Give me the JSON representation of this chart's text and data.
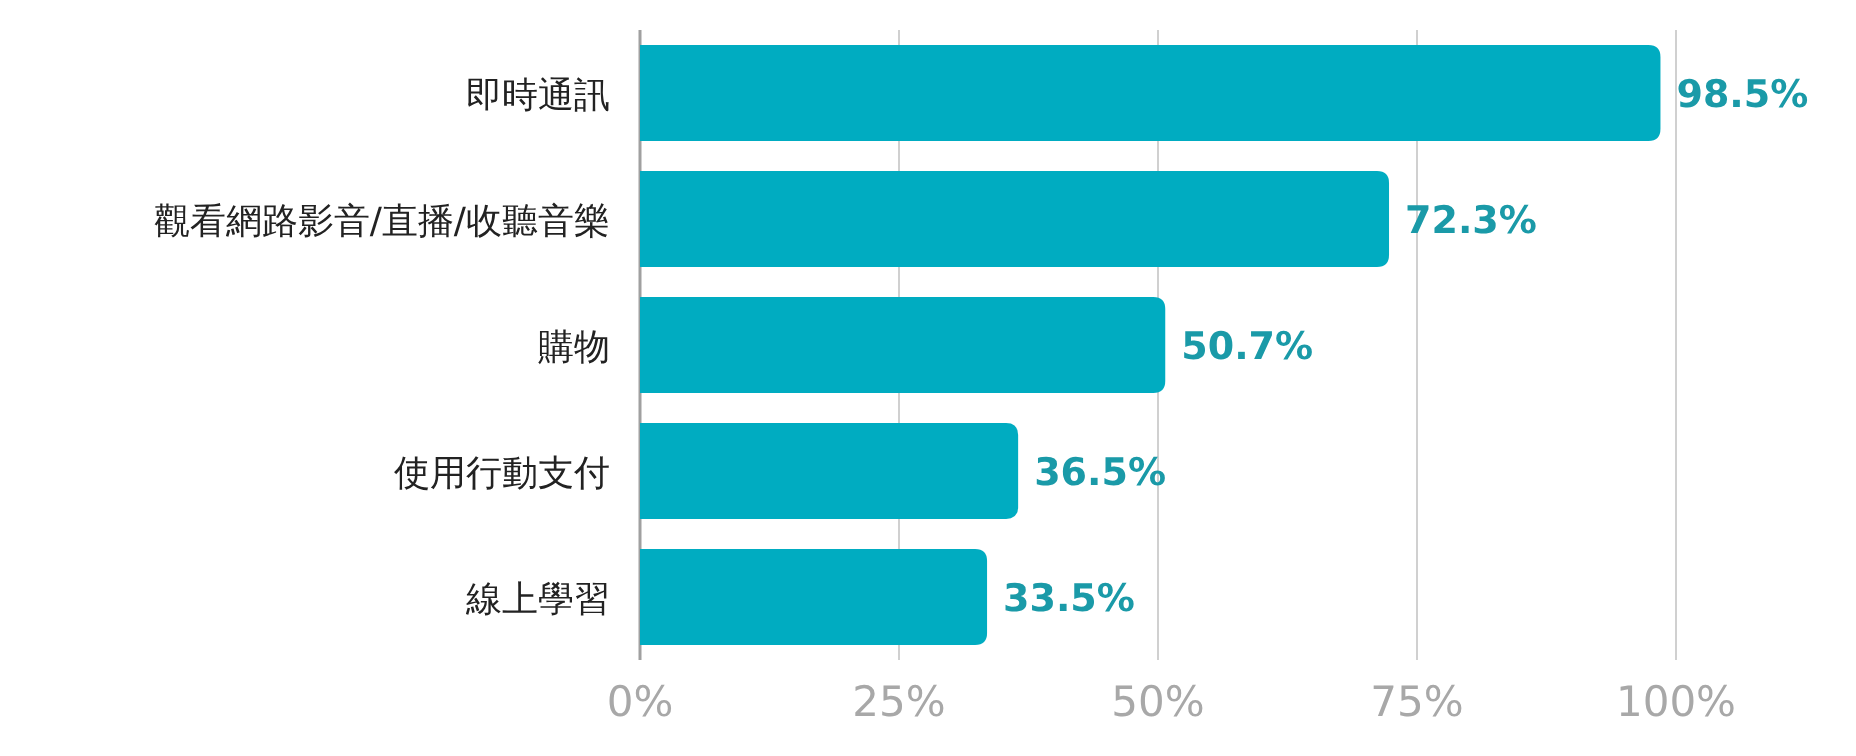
{
  "chart_data": {
    "type": "bar",
    "orientation": "horizontal",
    "categories": [
      "即時通訊",
      "觀看網路影音/直播/收聽音樂",
      "購物",
      "使用行動支付",
      "線上學習"
    ],
    "series": [
      {
        "color": "#00acc1",
        "values": [
          98.5,
          72.3,
          50.7,
          36.5,
          33.5
        ],
        "value_labels": [
          "98.5%",
          "72.3%",
          "50.7%",
          "36.5%",
          "33.5%"
        ]
      }
    ],
    "xlim": [
      0,
      100
    ],
    "xticks": [
      {
        "value": 0,
        "label": "0%"
      },
      {
        "value": 25,
        "label": "25%"
      },
      {
        "value": 50,
        "label": "50%"
      },
      {
        "value": 75,
        "label": "75%"
      },
      {
        "value": 100,
        "label": "100%"
      }
    ],
    "grid": "x"
  }
}
